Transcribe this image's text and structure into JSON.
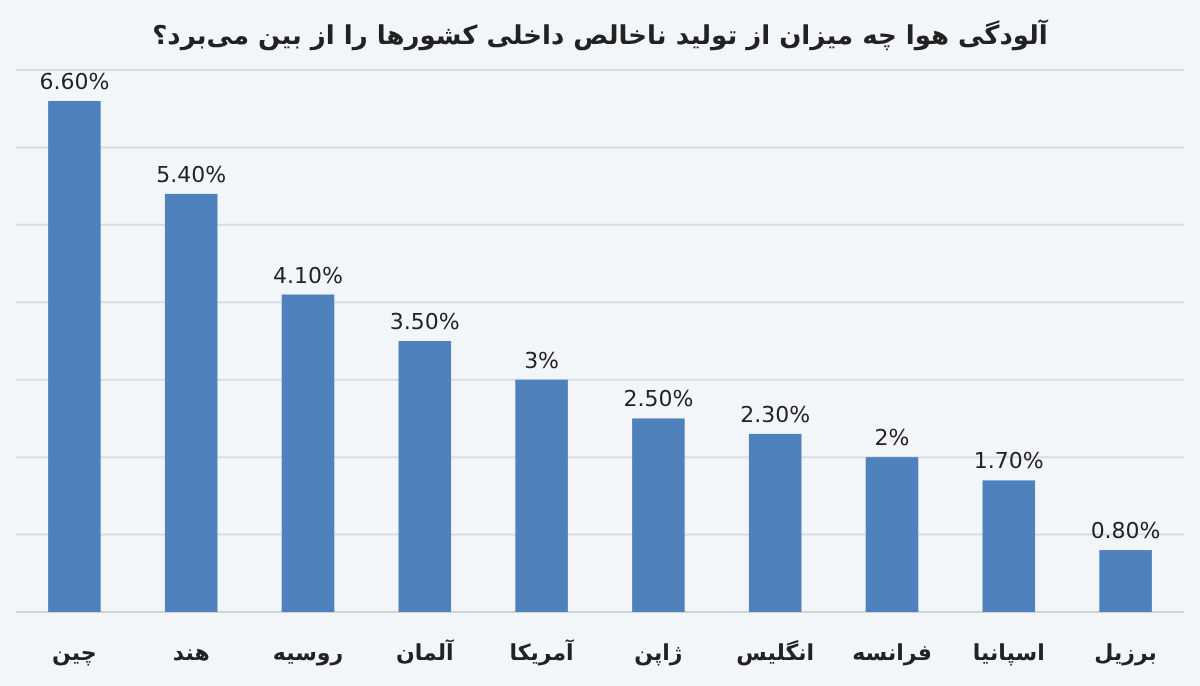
{
  "chart_data": {
    "type": "bar",
    "title": "آلودگی هوا چه میزان از تولید ناخالص داخلی کشورها را از بین می‌برد؟",
    "categories": [
      "چین",
      "هند",
      "روسیه",
      "آلمان",
      "آمریکا",
      "ژاپن",
      "انگلیس",
      "فرانسه",
      "اسپانیا",
      "برزیل"
    ],
    "values": [
      6.6,
      5.4,
      4.1,
      3.5,
      3,
      2.5,
      2.3,
      2,
      1.7,
      0.8
    ],
    "value_labels": [
      "6.60%",
      "5.40%",
      "4.10%",
      "3.50%",
      "3%",
      "2.50%",
      "2.30%",
      "2%",
      "1.70%",
      "0.80%"
    ],
    "color": "#4f81bd",
    "ylim": [
      0,
      7
    ],
    "yticks": [
      {
        "value": 0,
        "label": null
      },
      {
        "value": 1,
        "label": null
      },
      {
        "value": 2,
        "label": null
      },
      {
        "value": 3,
        "label": null
      },
      {
        "value": 4,
        "label": null
      },
      {
        "value": 5,
        "label": null
      },
      {
        "value": 6,
        "label": null
      },
      {
        "value": 7,
        "label": null
      }
    ],
    "grid": "y"
  }
}
